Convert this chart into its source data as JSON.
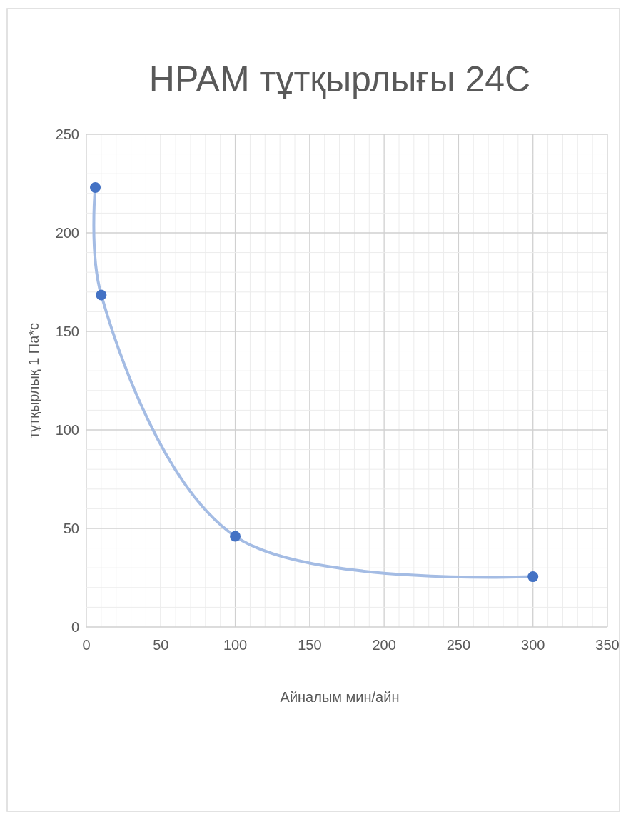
{
  "chart_data": {
    "type": "scatter",
    "title": "HPAM тұтқырлығы 24C",
    "xlabel": "Айналым мин/айн",
    "ylabel": "тұтқырлық 1 Па*с",
    "x": [
      6,
      10,
      100,
      300
    ],
    "series": [
      {
        "type": "line",
        "color": "#a4bce4",
        "marker": "none",
        "values": [
          223,
          168.5,
          46,
          25.5
        ]
      },
      {
        "color": "#4472c4",
        "marker": "circle",
        "values": [
          223,
          168.5,
          46,
          25.5
        ]
      }
    ],
    "xlim": [
      0,
      350
    ],
    "xticks": [
      0,
      50,
      100,
      150,
      200,
      250,
      300,
      350
    ],
    "ylim": [
      0,
      250
    ],
    "yticks": [
      0,
      50,
      100,
      150,
      200,
      250
    ],
    "grid": true
  }
}
